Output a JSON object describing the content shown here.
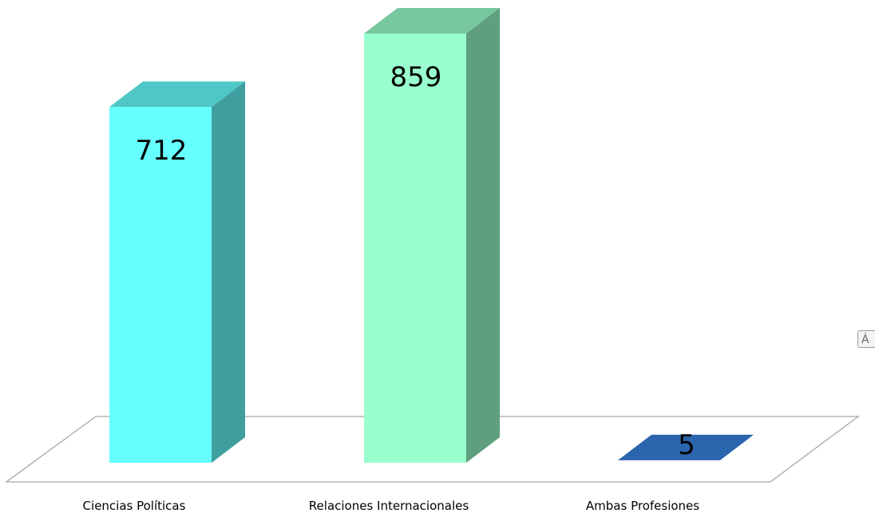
{
  "chart_data": {
    "type": "bar",
    "style": "3d-column",
    "categories": [
      "Ciencias Políticas",
      "Relaciones Internacionales",
      "Ambas Profesiones"
    ],
    "values": [
      712,
      859,
      5
    ],
    "data_labels": [
      "712",
      "859",
      "5"
    ],
    "colors": [
      "#66FFFF",
      "#99FFCC",
      "#3377CC"
    ],
    "title": "",
    "xlabel": "",
    "ylabel": "",
    "ylim": [
      0,
      859
    ],
    "grid": false,
    "legend": "none"
  },
  "corner_glyph": "Á"
}
